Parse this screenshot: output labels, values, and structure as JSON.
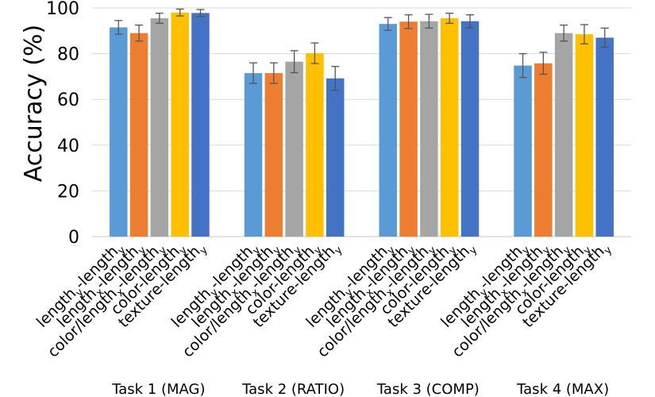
{
  "chart_data": {
    "type": "bar",
    "ylabel": "Accuracy (%)",
    "ylim": [
      0,
      100
    ],
    "yticks": [
      0,
      20,
      40,
      60,
      80,
      100
    ],
    "grid": true,
    "series_labels": [
      {
        "base": "length",
        "sub": "y",
        "rest": "-length",
        "rest_sub": "y"
      },
      {
        "base": "length",
        "sub": "x",
        "rest": "-length",
        "rest_sub": "y"
      },
      {
        "base": "color/length",
        "sub": "x",
        "rest": "-length",
        "rest_sub": "y"
      },
      {
        "base": "color-length",
        "sub": "y",
        "rest": "",
        "rest_sub": ""
      },
      {
        "base": "texture-length",
        "sub": "y",
        "rest": "",
        "rest_sub": ""
      }
    ],
    "colors": [
      "#5b9bd5",
      "#ed7d31",
      "#a5a5a5",
      "#ffc000",
      "#4472c4"
    ],
    "groups": [
      {
        "label": "Task 1 (MAG)",
        "values": [
          91.5,
          89,
          95.5,
          98,
          97.8
        ],
        "errors": [
          3,
          3.5,
          2.2,
          1.5,
          1.5
        ]
      },
      {
        "label": "Task 2 (RATIO)",
        "values": [
          71.5,
          71.5,
          76.5,
          80.2,
          69.2
        ],
        "errors": [
          4.5,
          4.5,
          4.8,
          4.5,
          5.2
        ]
      },
      {
        "label": "Task 3 (COMP)",
        "values": [
          93,
          94,
          94.2,
          95.5,
          94.2
        ],
        "errors": [
          2.8,
          3,
          3,
          2.2,
          2.8
        ]
      },
      {
        "label": "Task 4 (MAX)",
        "values": [
          74.8,
          75.8,
          89,
          88.5,
          87
        ],
        "errors": [
          5.2,
          4.8,
          3.5,
          4.2,
          4.2
        ]
      }
    ]
  }
}
